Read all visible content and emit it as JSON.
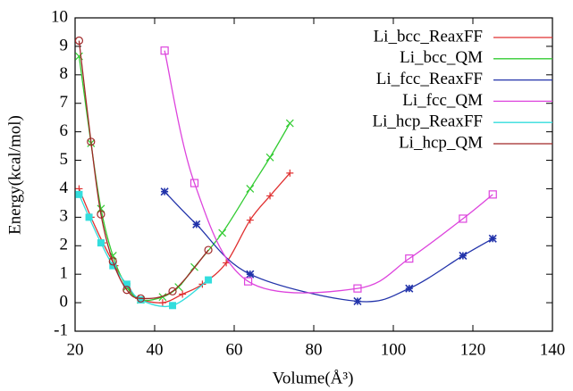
{
  "chart_data": {
    "type": "line",
    "xlabel": "Volume(Å³)",
    "ylabel": "Energy(kcal/mol)",
    "xlim": [
      20,
      140
    ],
    "xticks": [
      20,
      40,
      60,
      80,
      100,
      120,
      140
    ],
    "ylim": [
      -1,
      10
    ],
    "yticks": [
      -1,
      0,
      1,
      2,
      3,
      4,
      5,
      6,
      7,
      8,
      9,
      10
    ],
    "legend": "top-right",
    "series": [
      {
        "name": "Li_bcc_ReaxFF",
        "color": "#e03030",
        "marker": "plus",
        "x": [
          21,
          24,
          27,
          30,
          33,
          36,
          42,
          47,
          52,
          58,
          64,
          69,
          74
        ],
        "values": [
          4.0,
          3.0,
          2.1,
          1.3,
          0.6,
          0.15,
          0.0,
          0.3,
          0.65,
          1.4,
          2.9,
          3.75,
          4.55
        ]
      },
      {
        "name": "Li_bcc_QM",
        "color": "#33cc33",
        "marker": "cross",
        "x": [
          21,
          24,
          26.5,
          29.5,
          33,
          36.5,
          42,
          46,
          50,
          57,
          64,
          69,
          74
        ],
        "values": [
          8.65,
          5.6,
          3.3,
          1.65,
          0.55,
          0.1,
          0.2,
          0.55,
          1.25,
          2.45,
          4.0,
          5.1,
          6.3
        ]
      },
      {
        "name": "Li_fcc_ReaxFF",
        "color": "#2233aa",
        "marker": "star",
        "x": [
          42.5,
          50.5,
          64,
          91,
          104,
          117.5,
          125
        ],
        "values": [
          3.9,
          2.75,
          1.0,
          0.05,
          0.5,
          1.65,
          2.25
        ]
      },
      {
        "name": "Li_fcc_QM",
        "color": "#dd44dd",
        "marker": "square",
        "x": [
          42.5,
          50,
          63.5,
          91,
          104,
          117.5,
          125
        ],
        "values": [
          8.85,
          4.2,
          0.75,
          0.5,
          1.55,
          2.95,
          3.8
        ]
      },
      {
        "name": "Li_hcp_ReaxFF",
        "color": "#33dddd",
        "marker": "filled-square",
        "x": [
          21,
          23.5,
          26.5,
          29.5,
          33,
          36.5,
          44.5,
          53.5
        ],
        "values": [
          3.8,
          3.0,
          2.1,
          1.3,
          0.65,
          0.1,
          -0.1,
          0.8
        ]
      },
      {
        "name": "Li_hcp_QM",
        "color": "#a02828",
        "marker": "circle",
        "x": [
          21,
          24,
          26.5,
          29.5,
          33,
          36.5,
          44.5,
          53.5
        ],
        "values": [
          9.2,
          5.65,
          3.1,
          1.45,
          0.45,
          0.15,
          0.4,
          1.85
        ]
      }
    ]
  }
}
